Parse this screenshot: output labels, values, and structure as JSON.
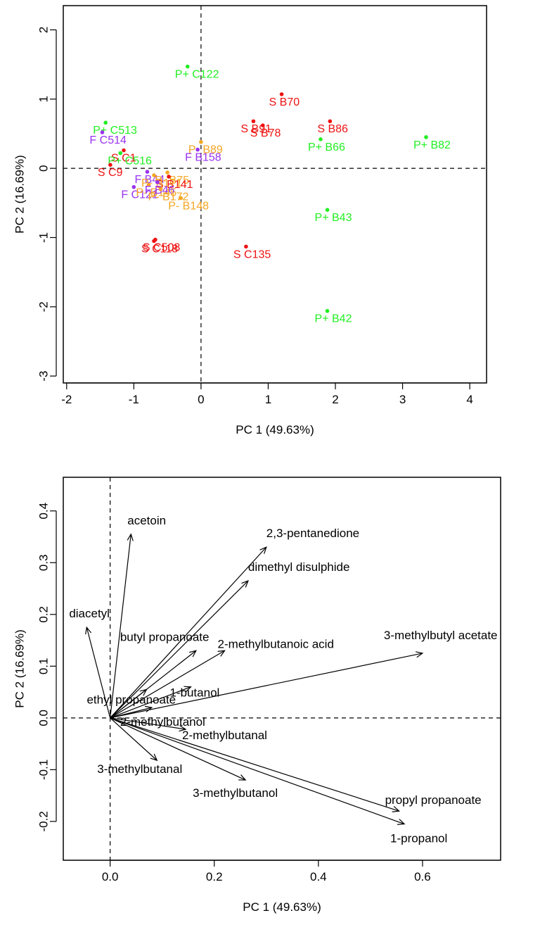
{
  "chart_data": [
    {
      "type": "scatter",
      "title": "",
      "xlabel": "PC 1 (49.63%)",
      "ylabel": "PC 2 (16.69%)",
      "xlim": [
        -2.05,
        4.25
      ],
      "ylim": [
        -3.1,
        2.35
      ],
      "xticks": [
        -2,
        -1,
        0,
        1,
        2,
        3,
        4
      ],
      "yticks": [
        -3,
        -2,
        -1,
        0,
        1,
        2
      ],
      "grid": false,
      "reference_lines": {
        "x": 0,
        "y": 0,
        "style": "dashed"
      },
      "colors": {
        "S": "#ee1111",
        "P+": "#22ee22",
        "P-": "#f5a623",
        "F": "#9933ee"
      },
      "points": [
        {
          "label": "P+ C122",
          "group": "P+",
          "x": -0.2,
          "y": 1.47
        },
        {
          "label": "S B70",
          "group": "S",
          "x": 1.2,
          "y": 1.07
        },
        {
          "label": "S B91",
          "group": "S",
          "x": 0.78,
          "y": 0.68
        },
        {
          "label": "S B78",
          "group": "S",
          "x": 0.92,
          "y": 0.62
        },
        {
          "label": "S B86",
          "group": "S",
          "x": 1.92,
          "y": 0.68
        },
        {
          "label": "P+ B66",
          "group": "P+",
          "x": 1.78,
          "y": 0.42
        },
        {
          "label": "P+ B82",
          "group": "P+",
          "x": 3.35,
          "y": 0.45
        },
        {
          "label": "P+ C513",
          "group": "P+",
          "x": -1.42,
          "y": 0.66
        },
        {
          "label": "F C514",
          "group": "F",
          "x": -1.47,
          "y": 0.52
        },
        {
          "label": "P- B89",
          "group": "P-",
          "x": 0.0,
          "y": 0.38
        },
        {
          "label": "F B158",
          "group": "F",
          "x": -0.05,
          "y": 0.27
        },
        {
          "label": "S C1",
          "group": "S",
          "x": -1.15,
          "y": 0.26
        },
        {
          "label": "P+ C516",
          "group": "P+",
          "x": -1.2,
          "y": 0.22
        },
        {
          "label": "S C9",
          "group": "S",
          "x": -1.35,
          "y": 0.05
        },
        {
          "label": "F B44",
          "group": "F",
          "x": -0.8,
          "y": -0.05
        },
        {
          "label": "P- B75",
          "group": "P-",
          "x": -0.5,
          "y": -0.06
        },
        {
          "label": "S B141",
          "group": "S",
          "x": -0.48,
          "y": -0.12
        },
        {
          "label": "P- B171",
          "group": "P-",
          "x": -0.7,
          "y": -0.1
        },
        {
          "label": "F C121",
          "group": "F",
          "x": -1.0,
          "y": -0.27
        },
        {
          "label": "P- B145",
          "group": "P-",
          "x": -0.78,
          "y": -0.24
        },
        {
          "label": "F B46",
          "group": "F",
          "x": -0.65,
          "y": -0.2
        },
        {
          "label": "P- B172",
          "group": "P-",
          "x": -0.6,
          "y": -0.3
        },
        {
          "label": "P- B148",
          "group": "P-",
          "x": -0.3,
          "y": -0.43
        },
        {
          "label": "P+ B43",
          "group": "P+",
          "x": 1.88,
          "y": -0.6
        },
        {
          "label": "S C508",
          "group": "S",
          "x": -0.68,
          "y": -1.03
        },
        {
          "label": "S C118",
          "group": "S",
          "x": -0.7,
          "y": -1.05
        },
        {
          "label": "S C135",
          "group": "S",
          "x": 0.67,
          "y": -1.13
        },
        {
          "label": "P+ B42",
          "group": "P+",
          "x": 1.88,
          "y": -2.06
        }
      ]
    },
    {
      "type": "biplot",
      "title": "",
      "xlabel": "PC 1 (49.63%)",
      "ylabel": "PC 2 (16.69%)",
      "xlim": [
        -0.09,
        0.75
      ],
      "ylim": [
        -0.275,
        0.465
      ],
      "xticks": [
        0.0,
        0.2,
        0.4,
        0.6
      ],
      "yticks": [
        -0.2,
        -0.1,
        0.0,
        0.1,
        0.2,
        0.3,
        0.4
      ],
      "grid": false,
      "reference_lines": {
        "x": 0,
        "y": 0,
        "style": "dashed"
      },
      "vectors": [
        {
          "label": "acetoin",
          "x": 0.04,
          "y": 0.355
        },
        {
          "label": "2,3-pentanedione",
          "x": 0.3,
          "y": 0.33
        },
        {
          "label": "dimethyl disulphide",
          "x": 0.265,
          "y": 0.265
        },
        {
          "label": "diacetyl",
          "x": -0.045,
          "y": 0.175
        },
        {
          "label": "butyl propanoate",
          "x": 0.165,
          "y": 0.13
        },
        {
          "label": "3-methylbutyl acetate",
          "x": 0.6,
          "y": 0.125
        },
        {
          "label": "2-methylbutanoic acid",
          "x": 0.22,
          "y": 0.13
        },
        {
          "label": "ethyl propanoate",
          "x": 0.07,
          "y": 0.055
        },
        {
          "label": "1-butanol",
          "x": 0.155,
          "y": 0.06
        },
        {
          "label": "2-methylbutanol",
          "x": 0.08,
          "y": 0.02
        },
        {
          "label": "2-methylbutanal",
          "x": 0.145,
          "y": -0.022
        },
        {
          "label": "3-methylbutanal",
          "x": 0.09,
          "y": -0.082
        },
        {
          "label": "3-methylbutanol",
          "x": 0.26,
          "y": -0.12
        },
        {
          "label": "propyl propanoate",
          "x": 0.555,
          "y": -0.18
        },
        {
          "label": "1-propanol",
          "x": 0.565,
          "y": -0.205
        }
      ]
    }
  ]
}
